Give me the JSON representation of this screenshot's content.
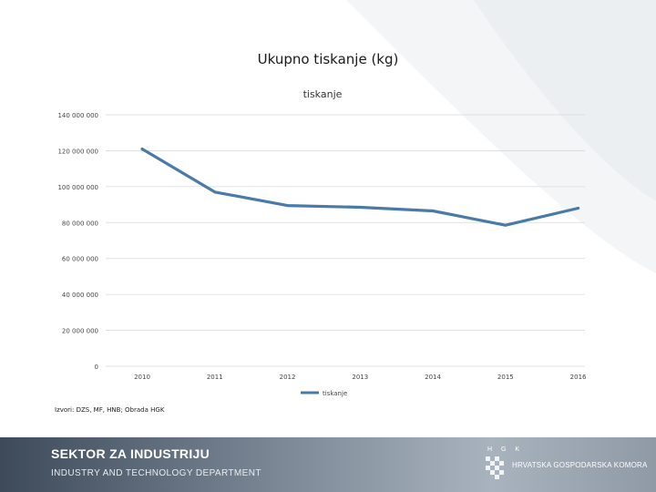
{
  "slide": {
    "title": "Ukupno tiskanje (kg)",
    "source": "Izvori: DZS, MF, HNB; Obrada HGK"
  },
  "footer": {
    "line1": "SEKTOR ZA INDUSTRIJU",
    "line2": "INDUSTRY AND TECHNOLOGY DEPARTMENT",
    "logo_short": "H G K",
    "logo_name": "HRVATSKA GOSPODARSKA KOMORA"
  },
  "chart_data": {
    "type": "line",
    "title": "tiskanje",
    "categories": [
      "2010",
      "2011",
      "2012",
      "2013",
      "2014",
      "2015",
      "2016"
    ],
    "series": [
      {
        "name": "tiskanje",
        "values": [
          121000000,
          97000000,
          89500000,
          88500000,
          86500000,
          78500000,
          88000000
        ],
        "color": "#4a7aa8"
      }
    ],
    "ylim": [
      0,
      140000000
    ],
    "yticks": [
      0,
      20000000,
      40000000,
      60000000,
      80000000,
      100000000,
      120000000,
      140000000
    ],
    "ytick_labels": [
      "0",
      "20 000 000",
      "40 000 000",
      "60 000 000",
      "80 000 000",
      "100 000 000",
      "120 000 000",
      "140 000 000"
    ],
    "grid": true,
    "legend_position": "bottom"
  },
  "colors": {
    "series": "#4a7aa8",
    "grid": "#d9d9d9",
    "footer": "#6f7c8b"
  }
}
